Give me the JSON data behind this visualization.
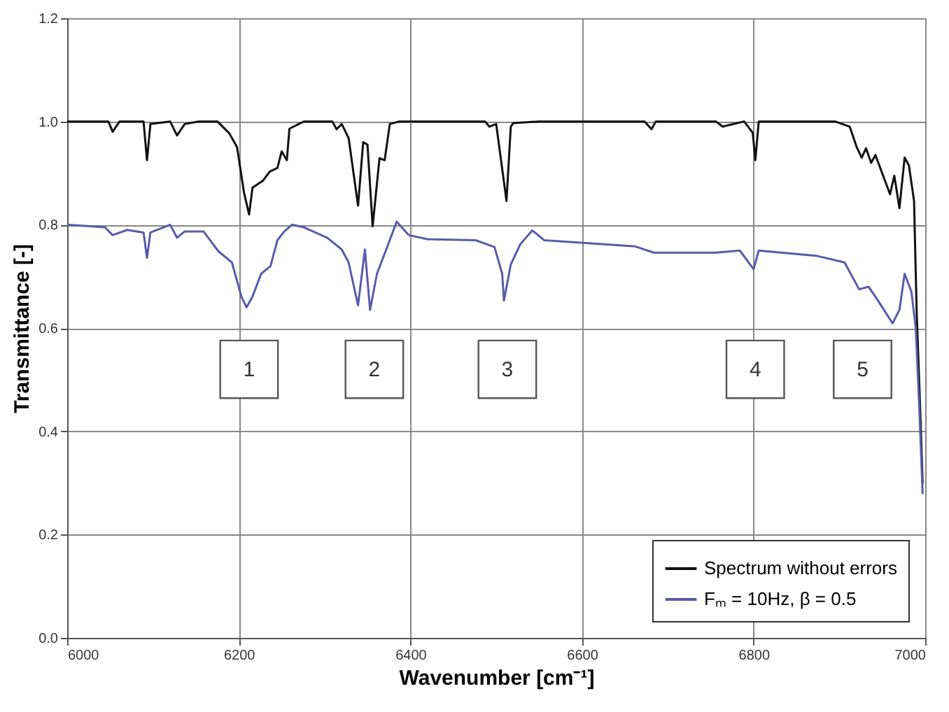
{
  "chart_data": {
    "type": "line",
    "xlabel": "Wavenumber [cm⁻¹]",
    "ylabel": "Transmittance [-]",
    "xlim": [
      6000,
      7000
    ],
    "xticks": [
      6000,
      6200,
      6400,
      6600,
      6800,
      7000
    ],
    "ylim": [
      0,
      1.2
    ],
    "yticks": [
      {
        "value": 0,
        "label": "0.0"
      },
      0.2,
      0.4,
      0.6,
      0.8,
      {
        "value": 1,
        "label": "1.0"
      },
      1.2
    ],
    "grid": true,
    "legend": "bottom right",
    "line_style": "solid",
    "series": [
      {
        "name": "Spectrum without errors",
        "color": "#111111",
        "x": [
          6000,
          6048,
          6053,
          6061,
          6089,
          6093,
          6097,
          6120,
          6128,
          6137,
          6153,
          6175,
          6189,
          6198,
          6206,
          6212,
          6216,
          6228,
          6236,
          6245,
          6250,
          6256,
          6259,
          6276,
          6309,
          6314,
          6320,
          6328,
          6339,
          6345,
          6350,
          6356,
          6364,
          6370,
          6376,
          6387,
          6487,
          6492,
          6500,
          6512,
          6517,
          6520,
          6550,
          6673,
          6681,
          6686,
          6756,
          6764,
          6789,
          6799,
          6802,
          6806,
          6895,
          6912,
          6920,
          6926,
          6931,
          6937,
          6942,
          6959,
          6964,
          6970,
          6976,
          6981,
          6987,
          6990,
          6994,
          6997
        ],
        "values": [
          1.0,
          1.0,
          0.98,
          1.0,
          1.0,
          0.925,
          0.995,
          1.0,
          0.973,
          0.995,
          1.0,
          1.0,
          0.977,
          0.95,
          0.863,
          0.82,
          0.872,
          0.885,
          0.903,
          0.91,
          0.942,
          0.925,
          0.986,
          1.0,
          1.0,
          0.985,
          0.995,
          0.968,
          0.837,
          0.96,
          0.955,
          0.797,
          0.929,
          0.925,
          0.995,
          1.0,
          1.0,
          0.99,
          0.995,
          0.846,
          0.99,
          0.997,
          1.0,
          1.0,
          0.985,
          1.0,
          1.0,
          0.99,
          1.0,
          0.978,
          0.925,
          1.0,
          1.0,
          0.99,
          0.951,
          0.93,
          0.948,
          0.92,
          0.935,
          0.859,
          0.895,
          0.832,
          0.93,
          0.915,
          0.846,
          0.635,
          0.45,
          0.3
        ]
      },
      {
        "name": "Fₘ = 10Hz, β = 0.5",
        "color": "#5a5aaa",
        "x": [
          6000,
          6044,
          6053,
          6070,
          6089,
          6093,
          6097,
          6120,
          6128,
          6137,
          6159,
          6176,
          6192,
          6203,
          6209,
          6216,
          6226,
          6237,
          6245,
          6253,
          6262,
          6276,
          6303,
          6320,
          6328,
          6339,
          6347,
          6353,
          6361,
          6373,
          6384,
          6398,
          6420,
          6476,
          6498,
          6507,
          6509,
          6517,
          6528,
          6542,
          6556,
          6662,
          6684,
          6756,
          6784,
          6800,
          6806,
          6873,
          6906,
          6923,
          6934,
          6945,
          6962,
          6970,
          6976,
          6984,
          6989,
          6993,
          6997
        ],
        "values": [
          0.8,
          0.795,
          0.78,
          0.79,
          0.785,
          0.736,
          0.785,
          0.8,
          0.775,
          0.787,
          0.787,
          0.749,
          0.727,
          0.661,
          0.64,
          0.661,
          0.705,
          0.72,
          0.77,
          0.787,
          0.8,
          0.795,
          0.775,
          0.752,
          0.727,
          0.644,
          0.752,
          0.635,
          0.705,
          0.757,
          0.806,
          0.78,
          0.772,
          0.77,
          0.757,
          0.705,
          0.653,
          0.723,
          0.762,
          0.789,
          0.77,
          0.758,
          0.746,
          0.746,
          0.75,
          0.714,
          0.75,
          0.74,
          0.727,
          0.675,
          0.68,
          0.653,
          0.609,
          0.635,
          0.705,
          0.67,
          0.6,
          0.45,
          0.28
        ]
      }
    ],
    "annotations": [
      {
        "text": "1",
        "x": 6212,
        "y": 0.52
      },
      {
        "text": "2",
        "x": 6358,
        "y": 0.52
      },
      {
        "text": "3",
        "x": 6513,
        "y": 0.52
      },
      {
        "text": "4",
        "x": 6802,
        "y": 0.52
      },
      {
        "text": "5",
        "x": 6927,
        "y": 0.52
      }
    ]
  }
}
